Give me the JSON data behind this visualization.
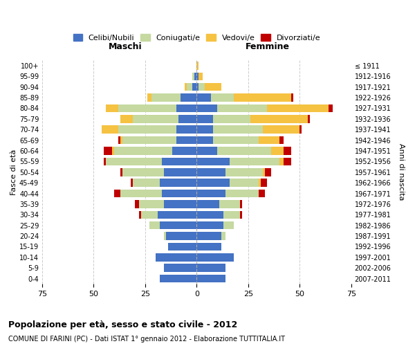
{
  "age_groups": [
    "100+",
    "95-99",
    "90-94",
    "85-89",
    "80-84",
    "75-79",
    "70-74",
    "65-69",
    "60-64",
    "55-59",
    "50-54",
    "45-49",
    "40-44",
    "35-39",
    "30-34",
    "25-29",
    "20-24",
    "15-19",
    "10-14",
    "5-9",
    "0-4"
  ],
  "birth_years": [
    "≤ 1911",
    "1912-1916",
    "1917-1921",
    "1922-1926",
    "1927-1931",
    "1932-1936",
    "1937-1941",
    "1942-1946",
    "1947-1951",
    "1952-1956",
    "1957-1961",
    "1962-1966",
    "1967-1971",
    "1972-1976",
    "1977-1981",
    "1982-1986",
    "1987-1991",
    "1992-1996",
    "1997-2001",
    "2002-2006",
    "2007-2011"
  ],
  "male_celibi": [
    0,
    1,
    2,
    8,
    10,
    9,
    10,
    10,
    12,
    17,
    16,
    18,
    17,
    16,
    19,
    18,
    15,
    14,
    20,
    16,
    18
  ],
  "male_coniugati": [
    0,
    1,
    3,
    14,
    28,
    22,
    28,
    26,
    28,
    27,
    20,
    13,
    20,
    12,
    8,
    5,
    1,
    0,
    0,
    0,
    0
  ],
  "male_vedovi": [
    0,
    0,
    1,
    2,
    6,
    6,
    8,
    1,
    1,
    0,
    0,
    0,
    0,
    0,
    0,
    0,
    0,
    0,
    0,
    0,
    0
  ],
  "male_divorziati": [
    0,
    0,
    0,
    0,
    0,
    0,
    0,
    1,
    4,
    1,
    1,
    1,
    3,
    2,
    1,
    0,
    0,
    0,
    0,
    0,
    0
  ],
  "female_celibi": [
    0,
    1,
    1,
    7,
    10,
    8,
    8,
    8,
    10,
    16,
    14,
    16,
    14,
    11,
    13,
    13,
    12,
    12,
    18,
    14,
    14
  ],
  "female_coniugati": [
    0,
    0,
    3,
    11,
    24,
    18,
    24,
    22,
    26,
    24,
    18,
    14,
    16,
    10,
    8,
    5,
    2,
    0,
    0,
    0,
    0
  ],
  "female_vedovi": [
    1,
    2,
    8,
    28,
    30,
    28,
    18,
    10,
    6,
    2,
    1,
    1,
    0,
    0,
    0,
    0,
    0,
    0,
    0,
    0,
    0
  ],
  "female_divorziati": [
    0,
    0,
    0,
    1,
    2,
    1,
    1,
    2,
    4,
    4,
    3,
    3,
    3,
    1,
    1,
    0,
    0,
    0,
    0,
    0,
    0
  ],
  "color_celibi": "#4472c4",
  "color_coniugati": "#c5d9a0",
  "color_vedovi": "#f5c242",
  "color_divorziati": "#c00000",
  "title_main": "Popolazione per età, sesso e stato civile - 2012",
  "title_sub": "COMUNE DI FARINI (PC) - Dati ISTAT 1° gennaio 2012 - Elaborazione TUTTITALIA.IT",
  "xlabel_left": "Maschi",
  "xlabel_right": "Femmine",
  "ylabel_left": "Fasce di età",
  "ylabel_right": "Anni di nascita",
  "xlim": 75,
  "legend_labels": [
    "Celibi/Nubili",
    "Coniugati/e",
    "Vedovi/e",
    "Divorziati/e"
  ],
  "background_color": "#ffffff",
  "grid_color": "#cccccc"
}
